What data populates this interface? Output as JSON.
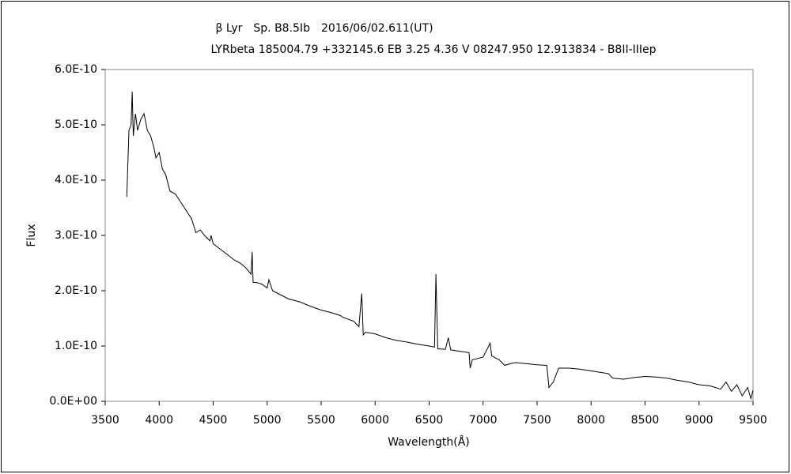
{
  "chart_data": {
    "type": "line",
    "title": "β Lyr　Sp. B8.5Ib　2016/06/02.611(UT)",
    "subtitle": "LYRbeta 185004.79 +332145.6 EB 3.25 4.36 V 08247.950 12.913834 - B8II-IIIep",
    "x_label": "Wavelength(Å)",
    "y_label": "Flux",
    "xlim": [
      3500,
      9500
    ],
    "xticks": [
      3500,
      4000,
      4500,
      5000,
      5500,
      6000,
      6500,
      7000,
      7500,
      8000,
      8500,
      9000,
      9500
    ],
    "ylim": [
      0,
      6e-10
    ],
    "yticks": [
      {
        "value": 0,
        "label": "0.0E+00"
      },
      {
        "value": 1e-10,
        "label": "1.0E-10"
      },
      {
        "value": 2e-10,
        "label": "2.0E-10"
      },
      {
        "value": 3e-10,
        "label": "3.0E-10"
      },
      {
        "value": 4e-10,
        "label": "4.0E-10"
      },
      {
        "value": 5e-10,
        "label": "5.0E-10"
      },
      {
        "value": 6e-10,
        "label": "6.0E-10"
      }
    ],
    "color": "#000000",
    "x": [
      3700,
      3720,
      3740,
      3750,
      3760,
      3780,
      3800,
      3830,
      3860,
      3890,
      3920,
      3950,
      3970,
      4000,
      4030,
      4060,
      4100,
      4150,
      4200,
      4250,
      4300,
      4340,
      4380,
      4420,
      4471,
      4480,
      4500,
      4600,
      4700,
      4750,
      4800,
      4850,
      4861,
      4870,
      4900,
      4950,
      5000,
      5016,
      5050,
      5100,
      5200,
      5300,
      5400,
      5500,
      5600,
      5680,
      5700,
      5800,
      5850,
      5876,
      5890,
      5910,
      6000,
      6100,
      6200,
      6300,
      6350,
      6400,
      6500,
      6550,
      6563,
      6580,
      6650,
      6678,
      6700,
      6800,
      6870,
      6880,
      6900,
      7000,
      7065,
      7080,
      7150,
      7200,
      7250,
      7300,
      7400,
      7500,
      7590,
      7610,
      7650,
      7700,
      7800,
      7900,
      8000,
      8100,
      8160,
      8200,
      8300,
      8400,
      8500,
      8600,
      8700,
      8800,
      8900,
      9000,
      9100,
      9200,
      9250,
      9300,
      9350,
      9400,
      9450,
      9480,
      9500
    ],
    "values": [
      3.7e-10,
      4.9e-10,
      5e-10,
      5.6e-10,
      4.8e-10,
      5.2e-10,
      4.9e-10,
      5.1e-10,
      5.2e-10,
      4.9e-10,
      4.8e-10,
      4.6e-10,
      4.4e-10,
      4.5e-10,
      4.2e-10,
      4.1e-10,
      3.8e-10,
      3.75e-10,
      3.6e-10,
      3.45e-10,
      3.3e-10,
      3.05e-10,
      3.1e-10,
      3e-10,
      2.9e-10,
      3e-10,
      2.85e-10,
      2.7e-10,
      2.55e-10,
      2.5e-10,
      2.42e-10,
      2.3e-10,
      2.7e-10,
      2.15e-10,
      2.15e-10,
      2.12e-10,
      2.05e-10,
      2.2e-10,
      2e-10,
      1.95e-10,
      1.85e-10,
      1.8e-10,
      1.72e-10,
      1.65e-10,
      1.6e-10,
      1.55e-10,
      1.52e-10,
      1.45e-10,
      1.35e-10,
      1.95e-10,
      1.2e-10,
      1.25e-10,
      1.22e-10,
      1.15e-10,
      1.1e-10,
      1.07e-10,
      1.05e-10,
      1.03e-10,
      1e-10,
      9.8e-11,
      2.3e-10,
      9.5e-11,
      9.4e-11,
      1.15e-10,
      9.3e-11,
      9e-11,
      8.8e-11,
      6e-11,
      7.5e-11,
      8e-11,
      1.05e-10,
      8.2e-11,
      7.5e-11,
      6.5e-11,
      6.8e-11,
      7e-11,
      6.8e-11,
      6.6e-11,
      6.5e-11,
      2.5e-11,
      3.5e-11,
      6e-11,
      6e-11,
      5.8e-11,
      5.5e-11,
      5.2e-11,
      5e-11,
      4.2e-11,
      4e-11,
      4.3e-11,
      4.5e-11,
      4.4e-11,
      4.2e-11,
      3.8e-11,
      3.5e-11,
      3e-11,
      2.8e-11,
      2.2e-11,
      3.5e-11,
      1.8e-11,
      3e-11,
      1e-11,
      2.5e-11,
      5e-12,
      2e-11
    ]
  }
}
